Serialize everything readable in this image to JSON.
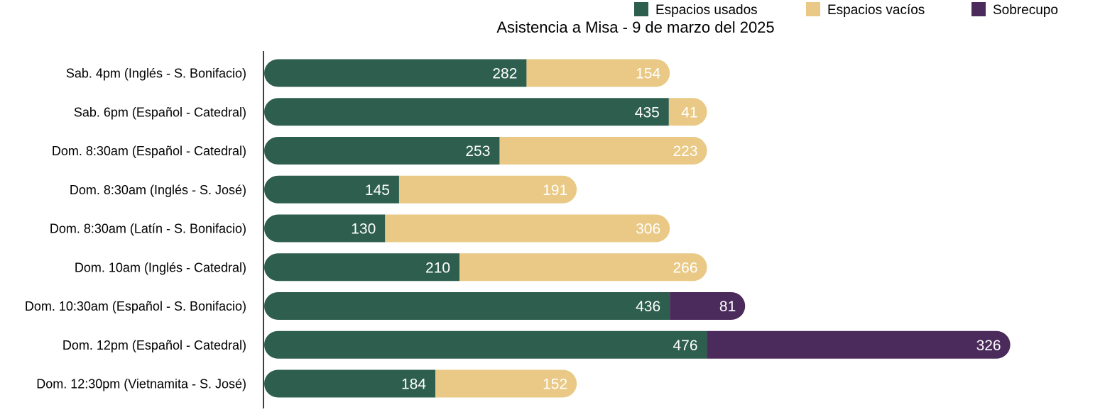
{
  "chart_data": {
    "type": "bar",
    "orientation": "horizontal",
    "stacked": true,
    "title": "Asistencia a Misa - 9 de marzo del 2025",
    "legend_position": "top-right",
    "grid": false,
    "xlim": [
      0,
      840
    ],
    "categories": [
      "Sab. 4pm (Inglés - S. Bonifacio)",
      "Sab. 6pm (Español - Catedral)",
      "Dom. 8:30am (Español - Catedral)",
      "Dom. 8:30am (Inglés - S. José)",
      "Dom. 8:30am (Latín - S. Bonifacio)",
      "Dom. 10am (Inglés - Catedral)",
      "Dom. 10:30am (Español - S. Bonifacio)",
      "Dom. 12pm (Español - Catedral)",
      "Dom. 12:30pm (Vietnamita - S. José)"
    ],
    "series": [
      {
        "name": "Espacios usados",
        "color": "#2e5e4e",
        "values": [
          282,
          435,
          253,
          145,
          130,
          210,
          436,
          476,
          184
        ]
      },
      {
        "name": "Espacios vacíos",
        "color": "#e9c985",
        "values": [
          154,
          41,
          223,
          191,
          306,
          266,
          null,
          null,
          152
        ]
      },
      {
        "name": "Sobrecupo",
        "color": "#4b2a5c",
        "values": [
          null,
          null,
          null,
          null,
          null,
          null,
          81,
          326,
          null
        ]
      }
    ]
  }
}
